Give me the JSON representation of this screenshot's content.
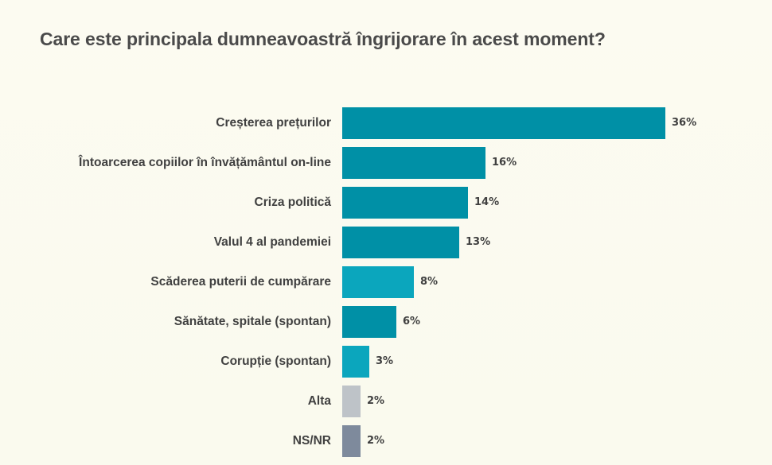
{
  "title": "Care este principala dumneavoastră îngrijorare în acest moment?",
  "chart_data": {
    "type": "bar",
    "orientation": "horizontal",
    "title": "Care este principala dumneavoastră îngrijorare în acest moment?",
    "xlabel": "",
    "ylabel": "",
    "grid": false,
    "legend": null,
    "categories": [
      "Creșterea prețurilor",
      "Întoarcerea copiilor în învățământul on-line",
      "Criza politică",
      "Valul 4 al pandemiei",
      "Scăderea puterii de cumpărare",
      "Sănătate, spitale (spontan)",
      "Corupție (spontan)",
      "Alta",
      "NS/NR"
    ],
    "values": [
      36,
      16,
      14,
      13,
      8,
      6,
      3,
      2,
      2
    ],
    "value_labels": [
      "36%",
      "16%",
      "14%",
      "13%",
      "8%",
      "6%",
      "3%",
      "2%",
      "2%"
    ],
    "unit": "%",
    "colors": [
      "#0090a6",
      "#0090a6",
      "#0090a6",
      "#0090a6",
      "#0ba6bd",
      "#0090a6",
      "#0ba6bd",
      "#bec3c8",
      "#7e8a9c"
    ]
  },
  "rows": [
    {
      "label": "Creșterea prețurilor",
      "value": "36%"
    },
    {
      "label": "Întoarcerea copiilor în învățământul on-line",
      "value": "16%"
    },
    {
      "label": "Criza politică",
      "value": "14%"
    },
    {
      "label": "Valul 4 al pandemiei",
      "value": "13%"
    },
    {
      "label": "Scăderea puterii de cumpărare",
      "value": "8%"
    },
    {
      "label": "Sănătate, spitale (spontan)",
      "value": "6%"
    },
    {
      "label": "Corupție (spontan)",
      "value": "3%"
    },
    {
      "label": "Alta",
      "value": "2%"
    },
    {
      "label": "NS/NR",
      "value": "2%"
    }
  ]
}
